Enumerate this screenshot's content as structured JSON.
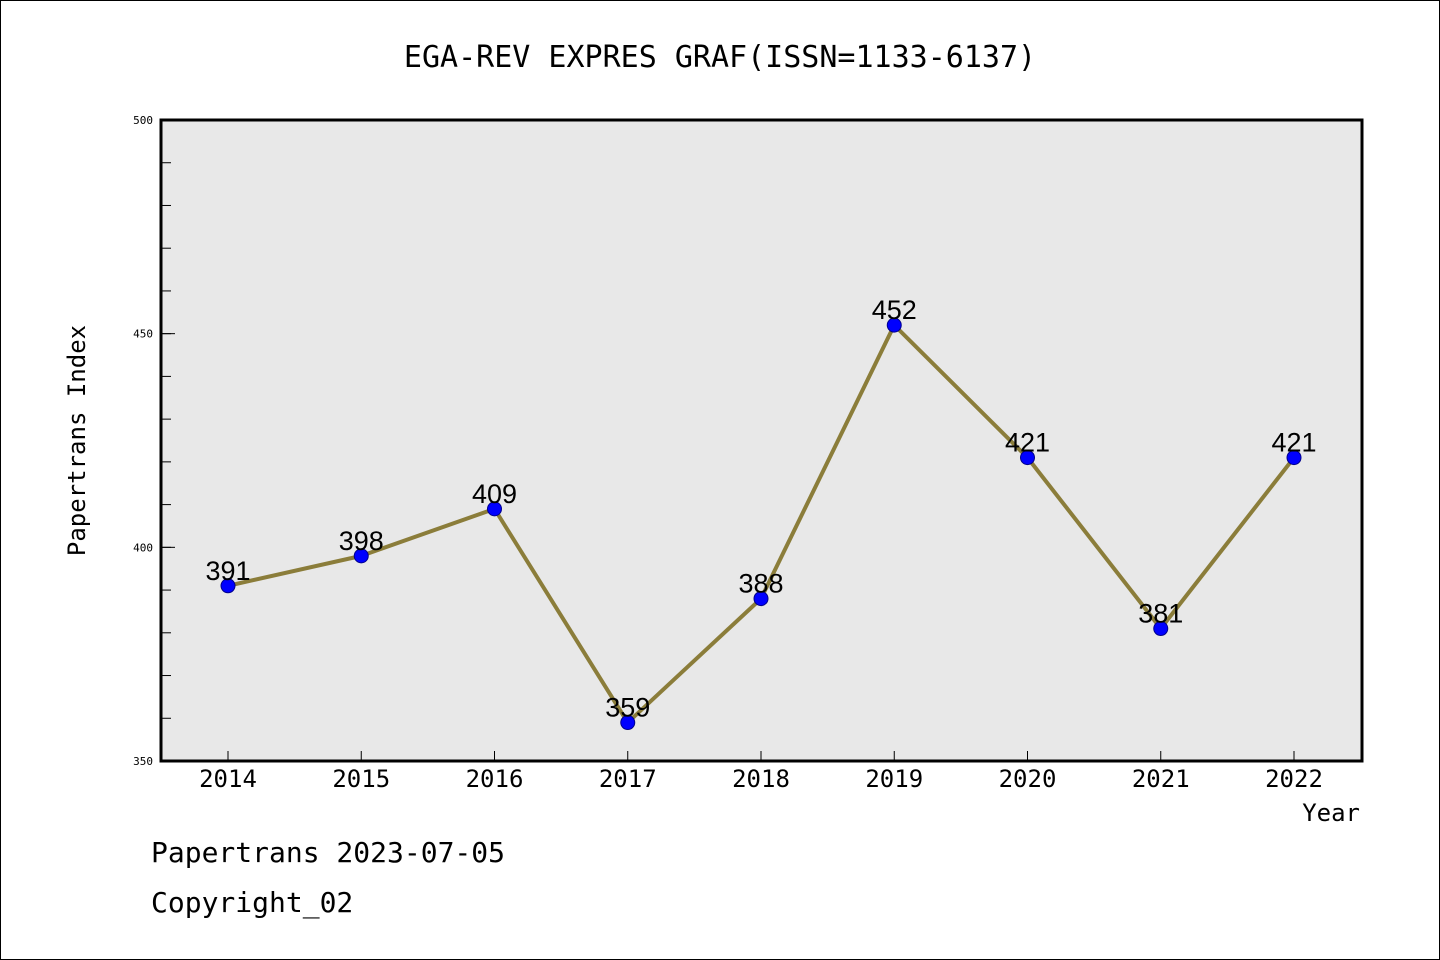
{
  "footer": {
    "source_line": "Papertrans 2023-07-05",
    "copyright_line": "Copyright_02"
  },
  "colors": {
    "plot_background": "#e8e8e8",
    "line": "#8b7d3a",
    "marker_fill": "#0000ff",
    "marker_stroke": "#00008b",
    "axis": "#000000"
  },
  "chart_data": {
    "type": "line",
    "title": "EGA-REV EXPRES GRAF(ISSN=1133-6137)",
    "xlabel": "Year",
    "ylabel": "Papertrans Index",
    "categories": [
      "2014",
      "2015",
      "2016",
      "2017",
      "2018",
      "2019",
      "2020",
      "2021",
      "2022"
    ],
    "series": [
      {
        "values": [
          391,
          398,
          409,
          359,
          388,
          452,
          421,
          381,
          421
        ]
      }
    ],
    "data_labels": [
      "391",
      "398",
      "409",
      "359",
      "388",
      "452",
      "421",
      "381",
      "421"
    ],
    "ylim": [
      350,
      500
    ],
    "yticks": [
      350,
      400,
      450,
      500
    ],
    "ytick_labels": [
      "350",
      "400",
      "450",
      "500"
    ],
    "y_minor_step": 10,
    "grid": false,
    "legend": "none"
  }
}
